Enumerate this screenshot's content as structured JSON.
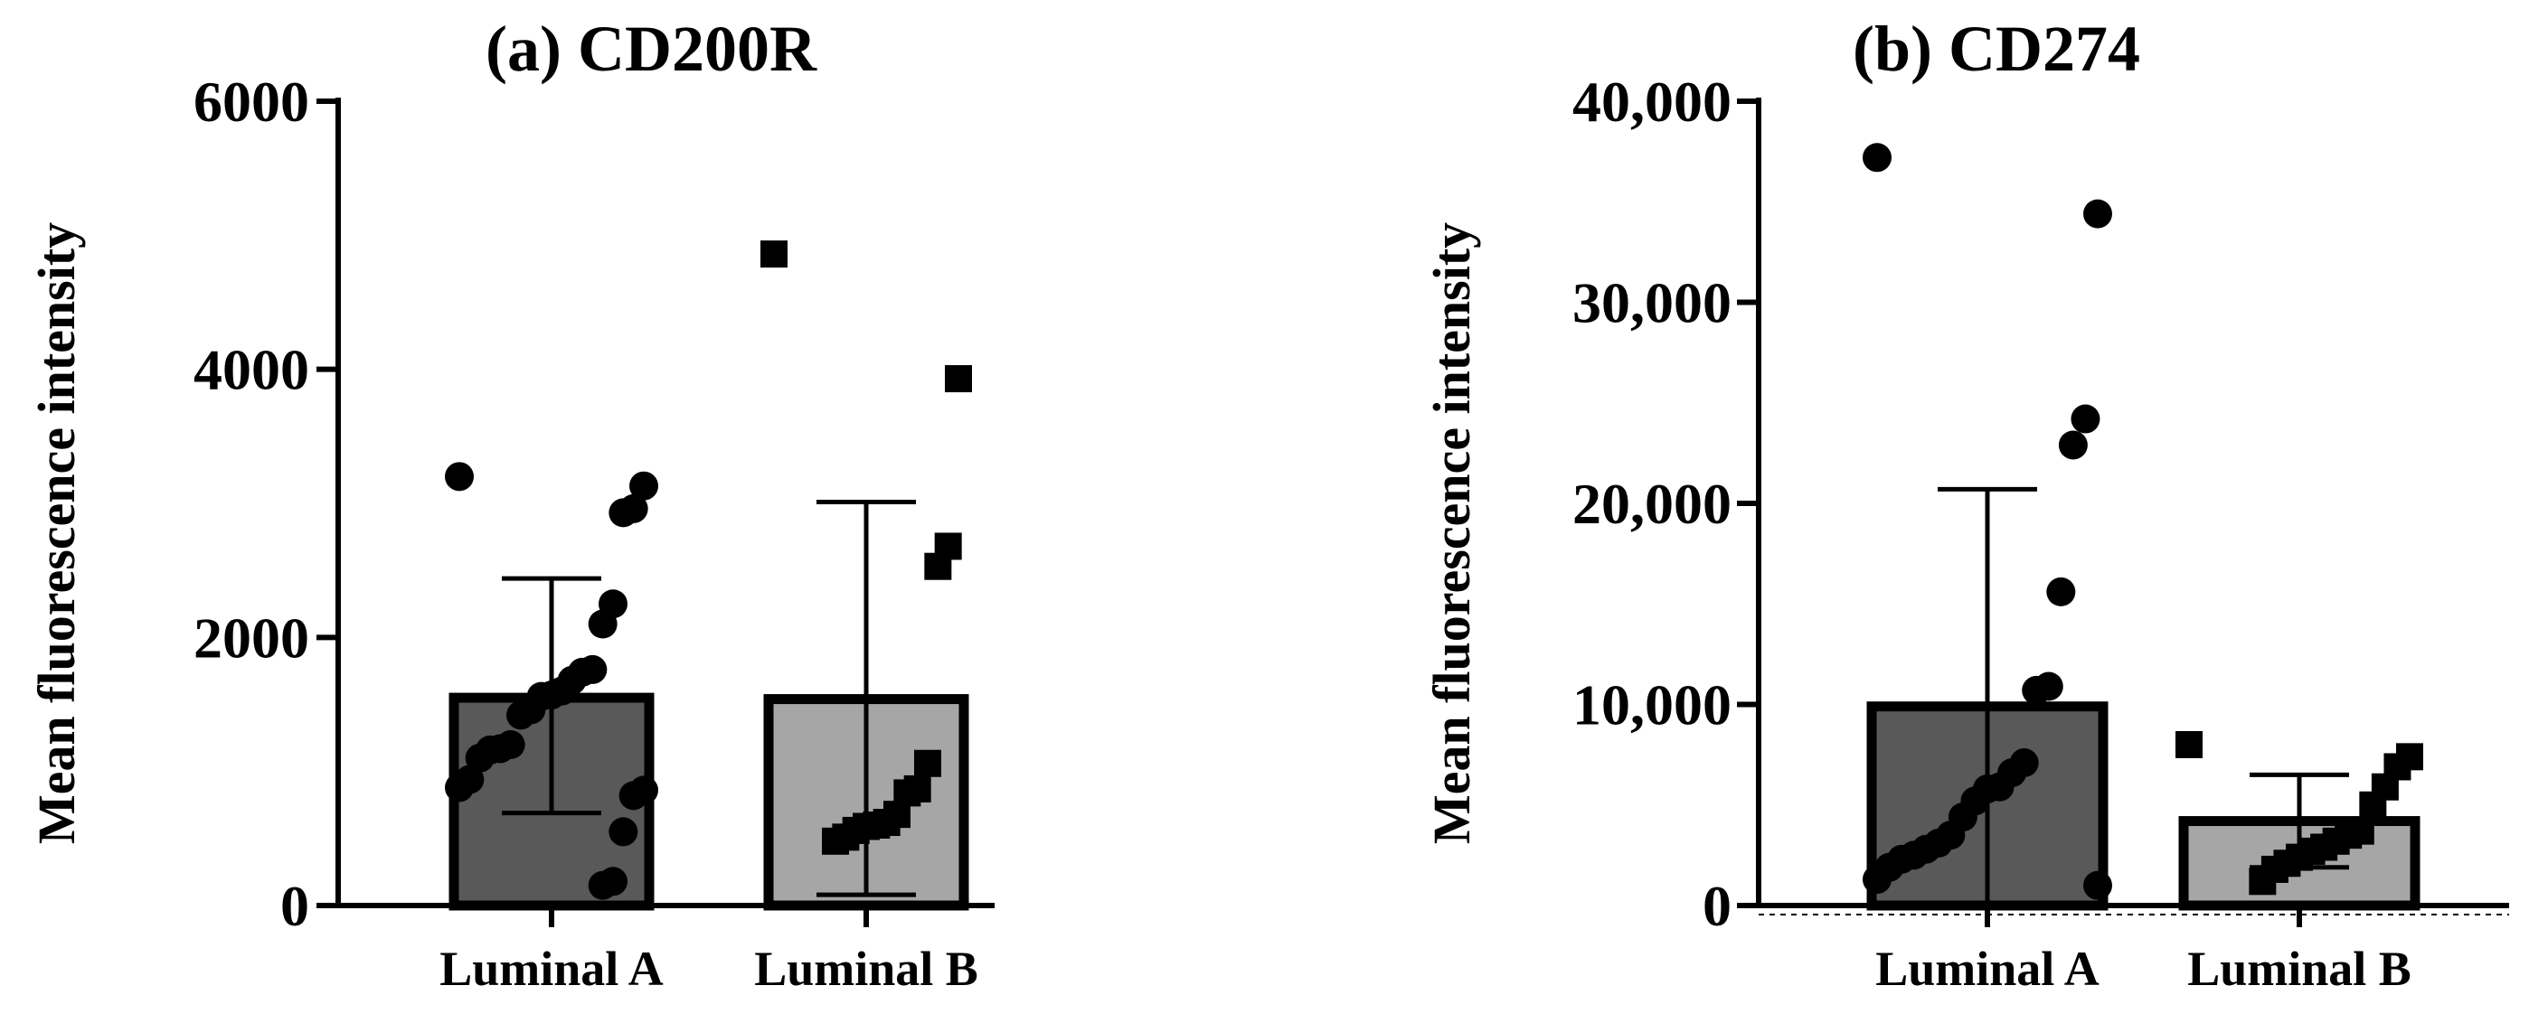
{
  "chart_data": [
    {
      "type": "bar",
      "title": "(a) CD200R",
      "ylabel": "Mean fluorescence intensity",
      "xlabel": "",
      "ylim": [
        0,
        6000
      ],
      "yticks": [
        0,
        2000,
        4000,
        6000
      ],
      "ytick_labels": [
        "0",
        "2000",
        "4000",
        "6000"
      ],
      "categories": [
        "Luminal A",
        "Luminal B"
      ],
      "bar_colors": [
        "#595959",
        "#a6a6a6"
      ],
      "values": [
        1550,
        1540
      ],
      "error_high": [
        2440,
        3010
      ],
      "error_low": [
        690,
        80
      ],
      "points": [
        {
          "group": "Luminal A",
          "marker": "circle",
          "values": [
            3200,
            3130,
            2960,
            2930,
            2250,
            2100,
            1760,
            1740,
            1680,
            1600,
            1570,
            1560,
            1460,
            1420,
            1200,
            1170,
            1160,
            1100,
            940,
            880,
            860,
            820,
            550,
            180,
            150
          ]
        },
        {
          "group": "Luminal B",
          "marker": "square",
          "values": [
            4860,
            3930,
            2680,
            2530,
            1060,
            870,
            840,
            680,
            620,
            600,
            590,
            560,
            510,
            480
          ]
        }
      ]
    },
    {
      "type": "bar",
      "title": "(b) CD274",
      "ylabel": "Mean fluorescence intensity",
      "xlabel": "",
      "ylim": [
        0,
        40000
      ],
      "yticks": [
        0,
        10000,
        20000,
        30000,
        40000
      ],
      "ytick_labels": [
        "0",
        "10,000",
        "20,000",
        "30,000",
        "40,000"
      ],
      "categories": [
        "Luminal A",
        "Luminal B"
      ],
      "bar_colors": [
        "#595959",
        "#a6a6a6"
      ],
      "values": [
        9900,
        4200
      ],
      "error_high": [
        20700,
        6500
      ],
      "error_low": [
        0,
        1900
      ],
      "points": [
        {
          "group": "Luminal A",
          "marker": "circle",
          "values": [
            37200,
            34400,
            24200,
            22900,
            15600,
            10900,
            10700,
            7100,
            6600,
            5900,
            5800,
            5200,
            4400,
            3500,
            3100,
            2800,
            2500,
            2300,
            1900,
            1300,
            1000
          ]
        },
        {
          "group": "Luminal B",
          "marker": "square",
          "values": [
            8000,
            7400,
            6900,
            5900,
            5000,
            3700,
            3500,
            3200,
            2900,
            2700,
            2400,
            2100,
            1800,
            1200
          ]
        }
      ]
    }
  ]
}
